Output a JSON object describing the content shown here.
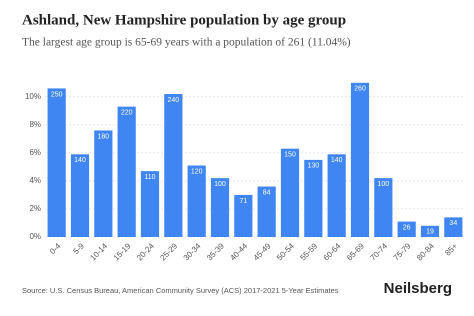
{
  "chart_data": {
    "type": "bar",
    "title": "Ashland, New Hampshire population by age group",
    "subtitle": "The largest age group is 65-69 years with a population of 261 (11.04%)",
    "categories": [
      "0-4",
      "5-9",
      "10-14",
      "15-19",
      "20-24",
      "25-29",
      "30-34",
      "35-39",
      "40-44",
      "45-49",
      "50-54",
      "55-59",
      "60-64",
      "65-69",
      "70-74",
      "75-79",
      "80-84",
      "85+"
    ],
    "values": [
      10.6,
      5.9,
      7.6,
      9.3,
      4.7,
      10.2,
      5.1,
      4.2,
      3.0,
      3.6,
      6.3,
      5.5,
      5.9,
      11.0,
      4.2,
      1.1,
      0.8,
      1.4
    ],
    "counts": [
      250,
      140,
      180,
      220,
      110,
      240,
      120,
      100,
      71,
      84,
      150,
      130,
      140,
      260,
      100,
      26,
      19,
      34
    ],
    "color": "#3f86f2",
    "ylim": [
      0,
      11.2
    ],
    "yticks": [
      {
        "value": 0,
        "label": "0%"
      },
      {
        "value": 2,
        "label": "2%"
      },
      {
        "value": 4,
        "label": "4%"
      },
      {
        "value": 6,
        "label": "6%"
      },
      {
        "value": 8,
        "label": "8%"
      },
      {
        "value": 10,
        "label": "10%"
      }
    ],
    "grid": true,
    "source": "Source: U.S. Census Bureau, American Community Survey (ACS) 2017-2021 5-Year Estimates",
    "brand": "Neilsberg"
  }
}
